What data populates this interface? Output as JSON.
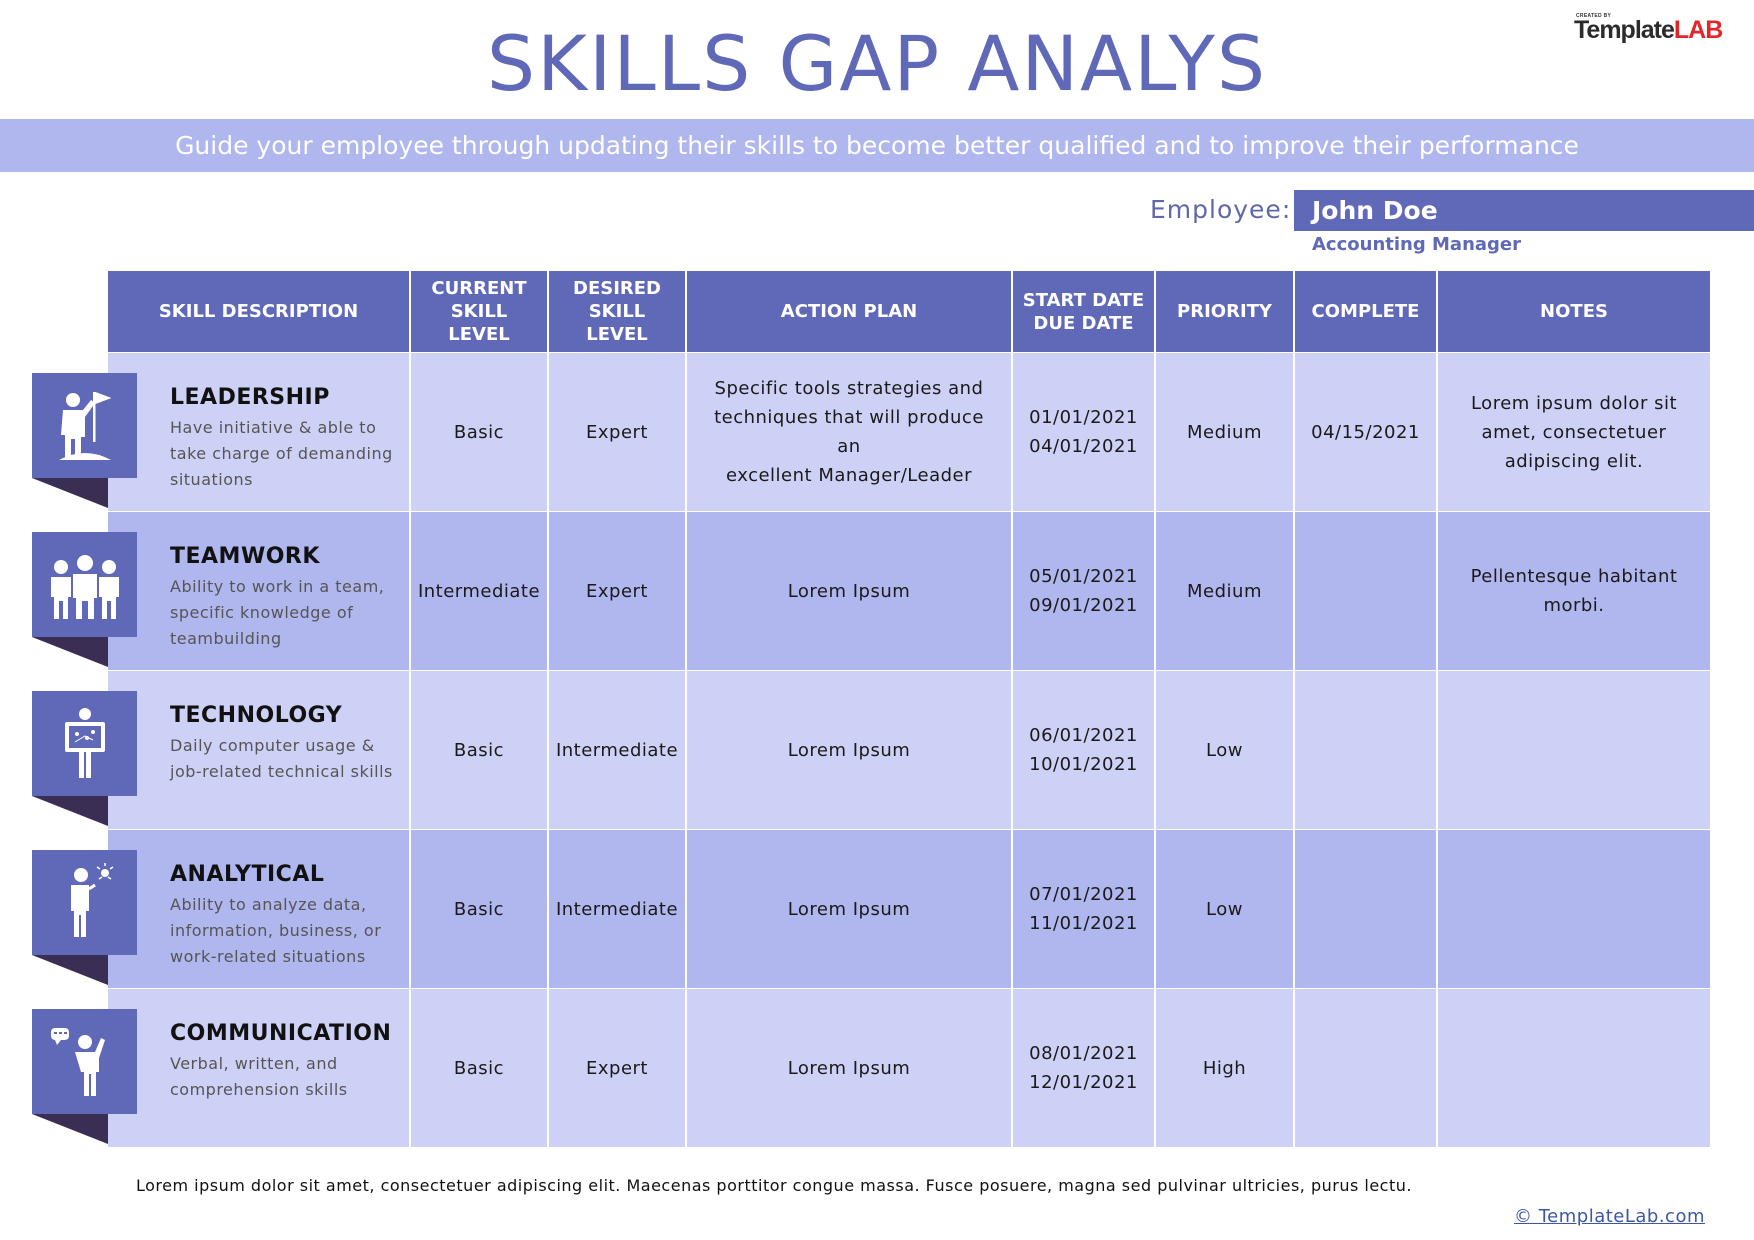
{
  "title": "SKILLS GAP ANALYS",
  "subtitle": "Guide your employee through updating their skills to become better qualified and to improve their performance",
  "logo": {
    "creator_text": "CREATED BY",
    "brand_part1": "Template",
    "brand_part2": "LAB"
  },
  "employee": {
    "label": "Employee:",
    "name": "John Doe",
    "role": "Accounting Manager"
  },
  "colors": {
    "primary": "#6068b8",
    "row_light": "#cdd1f6",
    "row_dark": "#b0b6ee",
    "fold_shadow": "#3a2e55"
  },
  "table": {
    "headers": [
      "SKILL DESCRIPTION",
      "CURRENT\nSKILL\nLEVEL",
      "DESIRED\nSKILL\nLEVEL",
      "ACTION PLAN",
      "START DATE\nDUE DATE",
      "PRIORITY",
      "COMPLETE",
      "NOTES"
    ],
    "rows": [
      {
        "icon": "leader-flag-icon",
        "skill": "LEADERSHIP",
        "description": "Have initiative & able to\ntake charge of demanding\nsituations",
        "current": "Basic",
        "desired": "Expert",
        "action": "Specific tools strategies and\ntechniques that will produce an\nexcellent Manager/Leader",
        "dates": "01/01/2021\n04/01/2021",
        "priority": "Medium",
        "complete": "04/15/2021",
        "notes": "Lorem ipsum dolor sit\namet, consectetuer\nadipiscing elit."
      },
      {
        "icon": "team-group-icon",
        "skill": "TEAMWORK",
        "description": "Ability to work in a team,\nspecific knowledge of\nteambuilding",
        "current": "Intermediate",
        "desired": "Expert",
        "action": "Lorem Ipsum",
        "dates": "05/01/2021\n09/01/2021",
        "priority": "Medium",
        "complete": "",
        "notes": "Pellentesque habitant\nmorbi."
      },
      {
        "icon": "person-board-icon",
        "skill": "TECHNOLOGY",
        "description": "Daily computer usage &\njob-related technical skills",
        "current": "Basic",
        "desired": "Intermediate",
        "action": "Lorem Ipsum",
        "dates": "06/01/2021\n10/01/2021",
        "priority": "Low",
        "complete": "",
        "notes": ""
      },
      {
        "icon": "thinking-person-icon",
        "skill": "ANALYTICAL",
        "description": "Ability to analyze data,\ninformation, business, or\nwork-related situations",
        "current": "Basic",
        "desired": "Intermediate",
        "action": "Lorem Ipsum",
        "dates": "07/01/2021\n11/01/2021",
        "priority": "Low",
        "complete": "",
        "notes": ""
      },
      {
        "icon": "speaking-person-icon",
        "skill": "COMMUNICATION",
        "description": "Verbal, written, and\ncomprehension skills",
        "current": "Basic",
        "desired": "Expert",
        "action": "Lorem Ipsum",
        "dates": "08/01/2021\n12/01/2021",
        "priority": "High",
        "complete": "",
        "notes": ""
      }
    ]
  },
  "footer": {
    "note": "Lorem ipsum dolor sit amet, consectetuer adipiscing elit. Maecenas porttitor congue massa. Fusce posuere, magna sed pulvinar ultricies, purus lectu.",
    "link": "© TemplateLab.com"
  }
}
